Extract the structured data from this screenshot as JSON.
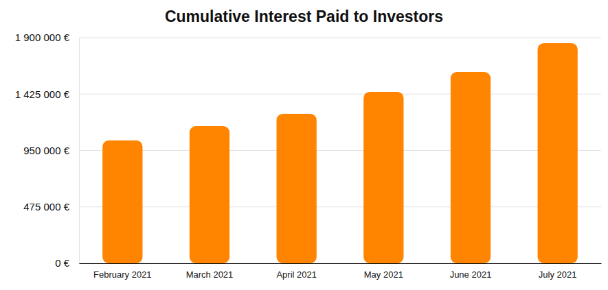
{
  "chart_data": {
    "type": "bar",
    "title": "Cumulative Interest Paid to Investors",
    "categories": [
      "February 2021",
      "March 2021",
      "April 2021",
      "May 2021",
      "June 2021",
      "July 2021"
    ],
    "values": [
      1035000,
      1155000,
      1259000,
      1444000,
      1611000,
      1854000
    ],
    "color": "#ff8400",
    "ylim": [
      0,
      1900000
    ],
    "yticks": [
      {
        "value": 0,
        "label": "0 €"
      },
      {
        "value": 475000,
        "label": "475 000 €"
      },
      {
        "value": 950000,
        "label": "950 000 €"
      },
      {
        "value": 1425000,
        "label": "1 425 000 €"
      },
      {
        "value": 1900000,
        "label": "1 900 000 €"
      }
    ],
    "grid": true
  }
}
